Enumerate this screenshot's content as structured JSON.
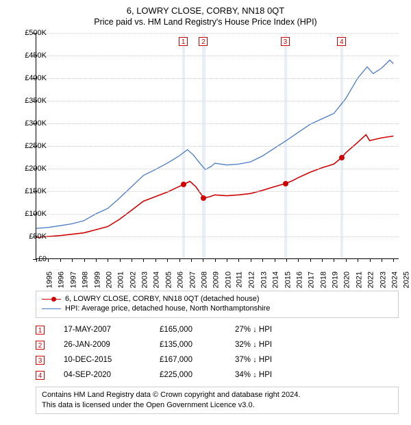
{
  "title": "6, LOWRY CLOSE, CORBY, NN18 0QT",
  "subtitle": "Price paid vs. HM Land Registry's House Price Index (HPI)",
  "chart": {
    "type": "line",
    "xlim": [
      1995,
      2025.5
    ],
    "ylim": [
      0,
      500000
    ],
    "ytick_step": 50000,
    "y_format_prefix": "£",
    "y_format_suffix": "K",
    "x_years": [
      1995,
      1996,
      1997,
      1998,
      1999,
      2000,
      2001,
      2002,
      2003,
      2004,
      2005,
      2006,
      2007,
      2008,
      2009,
      2010,
      2011,
      2012,
      2013,
      2014,
      2015,
      2016,
      2017,
      2018,
      2019,
      2020,
      2021,
      2022,
      2023,
      2024,
      2025
    ],
    "grid_color": "#d0d0d0",
    "background_color": "#ffffff",
    "marker_band_color": "#e8edf7",
    "marker_box_border": "#d00000",
    "series": [
      {
        "name": "property",
        "color": "#d00000",
        "width": 1.6,
        "points": [
          [
            1995,
            48
          ],
          [
            1996,
            50
          ],
          [
            1997,
            52
          ],
          [
            1998,
            55
          ],
          [
            1999,
            58
          ],
          [
            2000,
            65
          ],
          [
            2001,
            72
          ],
          [
            2002,
            88
          ],
          [
            2003,
            108
          ],
          [
            2004,
            128
          ],
          [
            2005,
            138
          ],
          [
            2006,
            148
          ],
          [
            2006.8,
            158
          ],
          [
            2007.38,
            165
          ],
          [
            2007.9,
            172
          ],
          [
            2008.4,
            160
          ],
          [
            2009.07,
            135
          ],
          [
            2009.6,
            138
          ],
          [
            2010,
            142
          ],
          [
            2011,
            140
          ],
          [
            2012,
            142
          ],
          [
            2013,
            145
          ],
          [
            2014,
            152
          ],
          [
            2015,
            160
          ],
          [
            2015.94,
            167
          ],
          [
            2016.5,
            173
          ],
          [
            2017,
            180
          ],
          [
            2018,
            192
          ],
          [
            2019,
            202
          ],
          [
            2020,
            210
          ],
          [
            2020.68,
            225
          ],
          [
            2021,
            235
          ],
          [
            2022,
            258
          ],
          [
            2022.7,
            275
          ],
          [
            2023,
            262
          ],
          [
            2024,
            268
          ],
          [
            2025,
            272
          ]
        ]
      },
      {
        "name": "hpi",
        "color": "#4a7bc8",
        "width": 1.3,
        "points": [
          [
            1995,
            68
          ],
          [
            1996,
            70
          ],
          [
            1997,
            74
          ],
          [
            1998,
            78
          ],
          [
            1999,
            85
          ],
          [
            2000,
            100
          ],
          [
            2001,
            112
          ],
          [
            2002,
            135
          ],
          [
            2003,
            160
          ],
          [
            2004,
            185
          ],
          [
            2005,
            198
          ],
          [
            2006,
            212
          ],
          [
            2007,
            228
          ],
          [
            2007.7,
            242
          ],
          [
            2008.2,
            230
          ],
          [
            2008.8,
            210
          ],
          [
            2009.2,
            198
          ],
          [
            2009.7,
            205
          ],
          [
            2010,
            212
          ],
          [
            2011,
            208
          ],
          [
            2012,
            210
          ],
          [
            2013,
            215
          ],
          [
            2014,
            228
          ],
          [
            2015,
            245
          ],
          [
            2016,
            262
          ],
          [
            2017,
            280
          ],
          [
            2018,
            298
          ],
          [
            2019,
            310
          ],
          [
            2020,
            322
          ],
          [
            2021,
            355
          ],
          [
            2022,
            400
          ],
          [
            2022.8,
            425
          ],
          [
            2023.3,
            410
          ],
          [
            2024,
            422
          ],
          [
            2024.7,
            440
          ],
          [
            2025,
            432
          ]
        ]
      }
    ],
    "sale_markers": [
      {
        "n": 1,
        "x": 2007.38,
        "y": 165,
        "band_width": 0.25
      },
      {
        "n": 2,
        "x": 2009.07,
        "y": 135,
        "band_width": 0.25
      },
      {
        "n": 3,
        "x": 2015.94,
        "y": 167,
        "band_width": 0.25
      },
      {
        "n": 4,
        "x": 2020.68,
        "y": 225,
        "band_width": 0.25
      }
    ],
    "dot_color": "#d00000"
  },
  "legend": {
    "items": [
      {
        "label": "6, LOWRY CLOSE, CORBY, NN18 0QT (detached house)",
        "color": "#d00000",
        "width": 1.6,
        "has_dot": true
      },
      {
        "label": "HPI: Average price, detached house, North Northamptonshire",
        "color": "#4a7bc8",
        "width": 1.3,
        "has_dot": false
      }
    ]
  },
  "sales_table": {
    "rows": [
      {
        "n": "1",
        "date": "17-MAY-2007",
        "price": "£165,000",
        "pct": "27%",
        "direction": "↓",
        "rel": "HPI"
      },
      {
        "n": "2",
        "date": "26-JAN-2009",
        "price": "£135,000",
        "pct": "32%",
        "direction": "↓",
        "rel": "HPI"
      },
      {
        "n": "3",
        "date": "10-DEC-2015",
        "price": "£167,000",
        "pct": "37%",
        "direction": "↓",
        "rel": "HPI"
      },
      {
        "n": "4",
        "date": "04-SEP-2020",
        "price": "£225,000",
        "pct": "34%",
        "direction": "↓",
        "rel": "HPI"
      }
    ]
  },
  "footer": {
    "line1": "Contains HM Land Registry data © Crown copyright and database right 2024.",
    "line2": "This data is licensed under the Open Government Licence v3.0."
  }
}
